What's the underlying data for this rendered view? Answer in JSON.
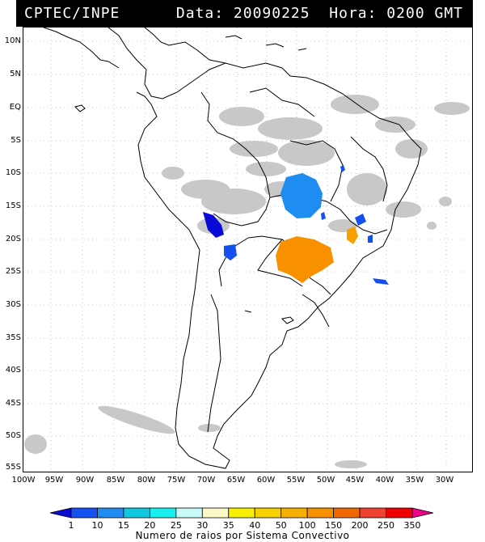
{
  "header": {
    "source": "CPTEC/INPE",
    "data_label": "Data: 20090225",
    "hora_label": "Hora: 0200 GMT"
  },
  "map": {
    "lat_labels": [
      "10N",
      "5N",
      "EQ",
      "5S",
      "10S",
      "15S",
      "20S",
      "25S",
      "30S",
      "35S",
      "40S",
      "45S",
      "50S",
      "55S"
    ],
    "lon_labels": [
      "100W",
      "95W",
      "90W",
      "85W",
      "80W",
      "75W",
      "70W",
      "65W",
      "60W",
      "55W",
      "50W",
      "45W",
      "40W",
      "35W",
      "30W"
    ],
    "colors": {
      "land_outline": "#000000",
      "cloud_gray": "#c8c8c8",
      "grid": "#888888"
    }
  },
  "legend": {
    "caption": "Numero de raios por Sistema Convectivo",
    "ticks": [
      "1",
      "10",
      "15",
      "20",
      "25",
      "30",
      "35",
      "40",
      "50",
      "100",
      "150",
      "200",
      "250",
      "350"
    ],
    "colors": [
      "#0a0ad8",
      "#1450f0",
      "#1e8cf0",
      "#10c8e0",
      "#18f0f0",
      "#c8fafa",
      "#fafac8",
      "#f8f000",
      "#f8d200",
      "#f8b000",
      "#f89000",
      "#f06800",
      "#f04030",
      "#f00000",
      "#f00088"
    ]
  },
  "systems": [
    {
      "color": "#1e8cf0"
    },
    {
      "color": "#0a0ad8"
    },
    {
      "color": "#1450f0"
    },
    {
      "color": "#f89000"
    },
    {
      "color": "#f8a000"
    }
  ]
}
